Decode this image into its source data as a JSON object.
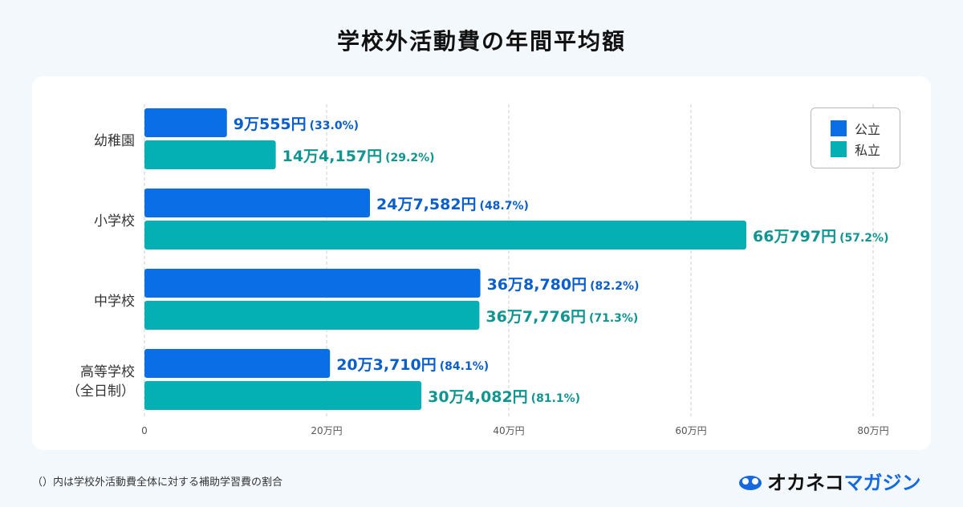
{
  "chart_data": {
    "type": "bar",
    "orientation": "horizontal",
    "title": "学校外活動費の年間平均額",
    "categories": [
      "幼稚園",
      "小学校",
      "中学校",
      "高等学校\n（全日制）"
    ],
    "category_lines": [
      [
        "幼稚園"
      ],
      [
        "小学校"
      ],
      [
        "中学校"
      ],
      [
        "高等学校",
        "（全日制）"
      ]
    ],
    "xlim": [
      0,
      80
    ],
    "x_unit": "万円",
    "ticks": [
      0,
      20,
      40,
      60,
      80
    ],
    "tick_labels": [
      "0",
      "20万円",
      "40万円",
      "60万円",
      "80万円"
    ],
    "grid": true,
    "legend_position": "top-right",
    "series": [
      {
        "name": "公立",
        "color": "#0a6fe6",
        "label_color": "#0b5fcc",
        "values": [
          9.0555,
          24.7582,
          36.878,
          20.371
        ],
        "labels": [
          "9万555円",
          "24万7,582円",
          "36万8,780円",
          "20万3,710円"
        ],
        "pcts": [
          "(33.0%)",
          "(48.7%)",
          "(82.2%)",
          "(84.1%)"
        ]
      },
      {
        "name": "私立",
        "color": "#04b0b3",
        "label_color": "#109590",
        "values": [
          14.4157,
          66.0797,
          36.7776,
          30.4082
        ],
        "labels": [
          "14万4,157円",
          "66万797円",
          "36万7,776円",
          "30万4,082円"
        ],
        "pcts": [
          "(29.2%)",
          "(57.2%)",
          "(71.3%)",
          "(81.1%)"
        ]
      }
    ]
  },
  "footnote": "（）内は学校外活動費全体に対する補助学習費の割合",
  "logo": {
    "part1": "オカネコ",
    "part2": "マガジン"
  }
}
